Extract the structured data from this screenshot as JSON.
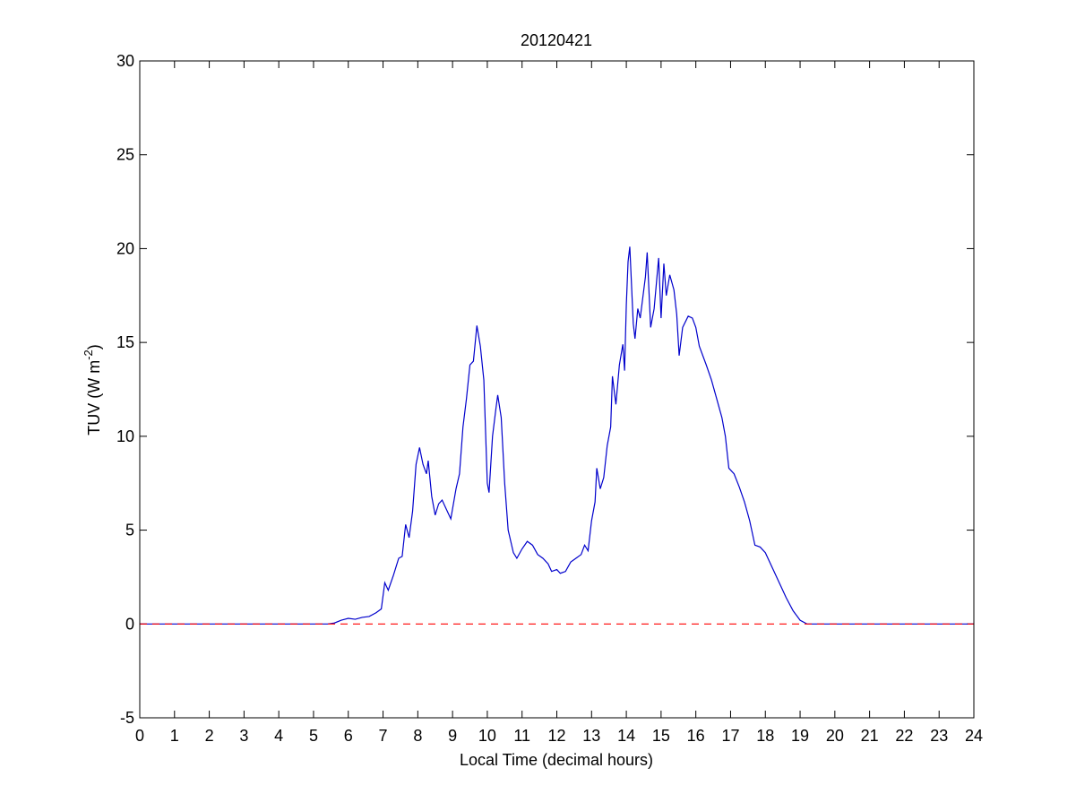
{
  "chart_data": {
    "type": "line",
    "title": "20120421",
    "xlabel": "Local Time (decimal hours)",
    "ylabel": {
      "text": "TUV (W m",
      "superscript": "-2",
      "suffix": ")"
    },
    "xlim": [
      0,
      24
    ],
    "ylim": [
      -5,
      30
    ],
    "xticks": [
      0,
      1,
      2,
      3,
      4,
      5,
      6,
      7,
      8,
      9,
      10,
      11,
      12,
      13,
      14,
      15,
      16,
      17,
      18,
      19,
      20,
      21,
      22,
      23,
      24
    ],
    "yticks": [
      -5,
      0,
      5,
      10,
      15,
      20,
      25,
      30
    ],
    "grid": false,
    "series": [
      {
        "color": "#0000cc",
        "dash": false,
        "x": [
          0,
          5.4,
          5.6,
          5.8,
          6.0,
          6.2,
          6.4,
          6.6,
          6.8,
          6.95,
          7.05,
          7.15,
          7.3,
          7.45,
          7.55,
          7.65,
          7.75,
          7.85,
          7.95,
          8.05,
          8.15,
          8.25,
          8.3,
          8.4,
          8.5,
          8.6,
          8.7,
          8.8,
          8.95,
          9.1,
          9.2,
          9.3,
          9.4,
          9.5,
          9.6,
          9.7,
          9.8,
          9.9,
          10.0,
          10.05,
          10.15,
          10.25,
          10.3,
          10.4,
          10.5,
          10.6,
          10.75,
          10.85,
          11.0,
          11.15,
          11.3,
          11.45,
          11.6,
          11.75,
          11.85,
          12.0,
          12.1,
          12.25,
          12.4,
          12.55,
          12.7,
          12.8,
          12.9,
          13.0,
          13.1,
          13.15,
          13.25,
          13.35,
          13.45,
          13.55,
          13.6,
          13.7,
          13.8,
          13.9,
          13.95,
          14.0,
          14.05,
          14.1,
          14.2,
          14.25,
          14.33,
          14.4,
          14.55,
          14.6,
          14.7,
          14.8,
          14.93,
          15.0,
          15.08,
          15.15,
          15.25,
          15.37,
          15.45,
          15.52,
          15.62,
          15.78,
          15.9,
          16.0,
          16.1,
          16.3,
          16.45,
          16.6,
          16.75,
          16.85,
          16.95,
          17.1,
          17.25,
          17.4,
          17.55,
          17.7,
          17.85,
          18.0,
          18.2,
          18.4,
          18.6,
          18.8,
          19.0,
          19.2,
          24
        ],
        "values": [
          0,
          0,
          0.05,
          0.2,
          0.3,
          0.25,
          0.35,
          0.4,
          0.6,
          0.8,
          2.2,
          1.8,
          2.6,
          3.5,
          3.6,
          5.3,
          4.6,
          6.0,
          8.5,
          9.4,
          8.5,
          8.0,
          8.7,
          6.8,
          5.8,
          6.4,
          6.6,
          6.2,
          5.6,
          7.2,
          8.0,
          10.5,
          12.0,
          13.8,
          14.0,
          15.9,
          14.8,
          13.0,
          7.5,
          7.0,
          10.0,
          11.5,
          12.2,
          11.0,
          7.5,
          5.0,
          3.8,
          3.5,
          4.0,
          4.4,
          4.2,
          3.7,
          3.5,
          3.2,
          2.8,
          2.9,
          2.7,
          2.8,
          3.3,
          3.5,
          3.7,
          4.2,
          3.9,
          5.5,
          6.5,
          8.3,
          7.2,
          7.8,
          9.5,
          10.5,
          13.2,
          11.7,
          13.8,
          14.9,
          13.5,
          17.0,
          19.3,
          20.1,
          16.0,
          15.2,
          16.8,
          16.3,
          18.5,
          19.8,
          15.8,
          16.8,
          19.5,
          16.3,
          19.2,
          17.5,
          18.6,
          17.8,
          16.5,
          14.3,
          15.8,
          16.4,
          16.3,
          15.8,
          14.8,
          13.8,
          13.0,
          12.0,
          11.0,
          10.0,
          8.3,
          8.0,
          7.3,
          6.5,
          5.5,
          4.2,
          4.1,
          3.8,
          3.0,
          2.2,
          1.4,
          0.7,
          0.2,
          0,
          0
        ]
      },
      {
        "color": "#ff0000",
        "dash": true,
        "x": [
          0,
          24
        ],
        "values": [
          0,
          0
        ]
      }
    ]
  }
}
